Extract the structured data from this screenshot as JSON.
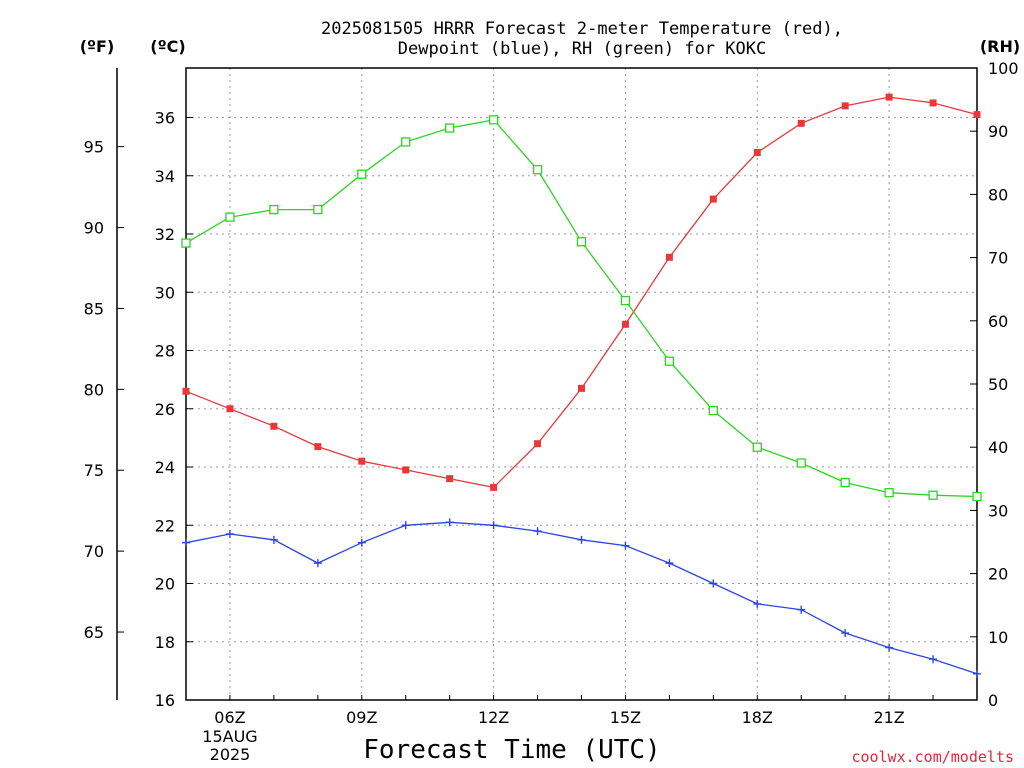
{
  "title_line1": "2025081505 HRRR Forecast 2-meter Temperature (red),",
  "title_line2": "Dewpoint (blue), RH (green) for KOKC",
  "units": {
    "f": "(ºF)",
    "c": "(ºC)",
    "rh": "(RH)"
  },
  "xlabel": "Forecast Time (UTC)",
  "credit": "coolwx.com/modelts",
  "x_tick_labels": [
    {
      "hour": 6,
      "label": "06Z"
    },
    {
      "hour": 9,
      "label": "09Z"
    },
    {
      "hour": 12,
      "label": "12Z"
    },
    {
      "hour": 15,
      "label": "15Z"
    },
    {
      "hour": 18,
      "label": "18Z"
    },
    {
      "hour": 21,
      "label": "21Z"
    }
  ],
  "date_label": {
    "line1": "15AUG",
    "line2": "2025"
  },
  "colors": {
    "temperature": "#e8383a",
    "dewpoint": "#2a45e6",
    "rh": "#2ad61e"
  },
  "chart_data": {
    "type": "line",
    "x": [
      5,
      6,
      7,
      8,
      9,
      10,
      11,
      12,
      13,
      14,
      15,
      16,
      17,
      18,
      19,
      20,
      21,
      22,
      23
    ],
    "xlim": [
      5,
      23
    ],
    "ylim_c": [
      16,
      37.7
    ],
    "ylim_rh": [
      0,
      100
    ],
    "f_ticks": [
      65,
      70,
      75,
      80,
      85,
      90,
      95
    ],
    "c_ticks": [
      16,
      18,
      20,
      22,
      24,
      26,
      28,
      30,
      32,
      34,
      36
    ],
    "rh_ticks": [
      0,
      10,
      20,
      30,
      40,
      50,
      60,
      70,
      80,
      90,
      100
    ],
    "series": [
      {
        "key": "temperature",
        "axis": "c",
        "marker": "filled-square",
        "values": [
          26.6,
          26.0,
          25.4,
          24.7,
          24.2,
          23.9,
          23.6,
          23.3,
          24.8,
          26.7,
          28.9,
          31.2,
          33.2,
          34.8,
          35.8,
          36.4,
          36.7,
          36.5,
          36.1
        ]
      },
      {
        "key": "dewpoint",
        "axis": "c",
        "marker": "plus",
        "values": [
          21.4,
          21.7,
          21.5,
          20.7,
          21.4,
          22.0,
          22.1,
          22.0,
          21.8,
          21.5,
          21.3,
          20.7,
          20.0,
          19.3,
          19.1,
          18.3,
          17.8,
          17.4,
          16.9
        ]
      },
      {
        "key": "rh",
        "axis": "rh",
        "marker": "open-square",
        "values": [
          72.3,
          76.4,
          77.6,
          77.6,
          83.2,
          88.3,
          90.5,
          91.8,
          83.9,
          72.5,
          63.2,
          53.6,
          45.8,
          40.0,
          37.5,
          34.4,
          32.8,
          32.4,
          32.2
        ]
      }
    ]
  }
}
